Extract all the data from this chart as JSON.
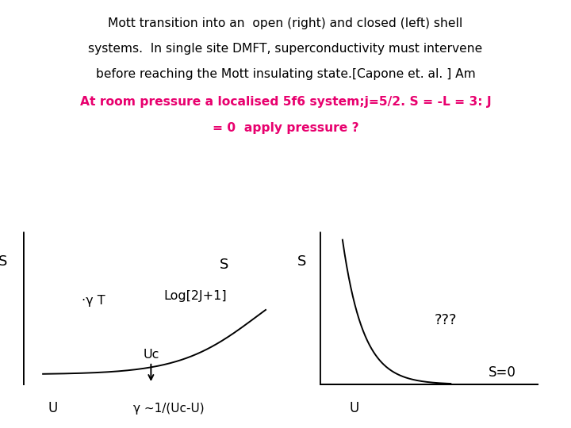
{
  "title_line1": "Mott transition into an  open (right) and closed (left) shell",
  "title_line2": "systems.  In single site DMFT, superconductivity must intervene",
  "title_line3": "before reaching the Mott insulating state.[Capone et. al. ] Am",
  "title_line4": "At room pressure a localised 5f6 system;j=5/2. S = -L = 3: J",
  "title_line5": "= 0  apply pressure ?",
  "title_color_black": "#000000",
  "title_color_magenta": "#e8006e",
  "bg_color": "#ffffff",
  "left_label_S_axis": "S",
  "left_label_gammaT": "·γ T",
  "left_label_Log": "Log[2J+1]",
  "left_label_S_plateau": "S",
  "left_label_Uc": "Uc",
  "left_label_U": "U",
  "left_label_gamma": "γ ~1/(Uc-U)",
  "right_label_S_axis": "S",
  "right_label_qqq": "???",
  "right_label_S0": "S=0",
  "right_label_U": "U"
}
